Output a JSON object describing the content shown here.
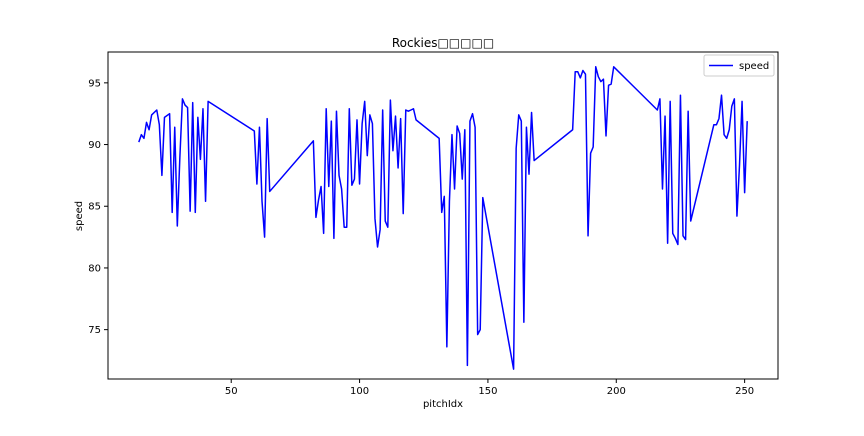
{
  "chart_data": {
    "type": "line",
    "title": "Rockies□□□□□",
    "xlabel": "pitchIdx",
    "ylabel": "speed",
    "xlim": [
      2,
      263
    ],
    "ylim": [
      71,
      97.5
    ],
    "xticks": [
      50,
      100,
      150,
      200,
      250
    ],
    "yticks": [
      75,
      80,
      85,
      90,
      95
    ],
    "grid": false,
    "legend_position": "top-right",
    "series": [
      {
        "name": "speed",
        "color": "#0000ff",
        "points": [
          [
            14,
            90.2
          ],
          [
            15,
            90.8
          ],
          [
            16,
            90.5
          ],
          [
            17,
            91.8
          ],
          [
            18,
            91.2
          ],
          [
            19,
            92.4
          ],
          [
            21,
            92.8
          ],
          [
            22,
            91.6
          ],
          [
            23,
            87.5
          ],
          [
            24,
            92.2
          ],
          [
            26,
            92.5
          ],
          [
            27,
            84.5
          ],
          [
            28,
            91.4
          ],
          [
            29,
            83.4
          ],
          [
            30,
            89.0
          ],
          [
            31,
            93.7
          ],
          [
            32,
            93.2
          ],
          [
            33,
            93.0
          ],
          [
            34,
            84.6
          ],
          [
            35,
            93.4
          ],
          [
            36,
            84.5
          ],
          [
            37,
            92.2
          ],
          [
            38,
            88.8
          ],
          [
            39,
            92.9
          ],
          [
            40,
            85.4
          ],
          [
            41,
            93.5
          ],
          [
            59,
            91.1
          ],
          [
            60,
            86.8
          ],
          [
            61,
            91.4
          ],
          [
            62,
            85.4
          ],
          [
            63,
            82.5
          ],
          [
            64,
            92.1
          ],
          [
            65,
            86.2
          ],
          [
            82,
            90.3
          ],
          [
            83,
            84.1
          ],
          [
            84,
            85.5
          ],
          [
            85,
            86.6
          ],
          [
            86,
            82.8
          ],
          [
            87,
            92.9
          ],
          [
            88,
            86.6
          ],
          [
            89,
            91.9
          ],
          [
            90,
            82.4
          ],
          [
            91,
            92.7
          ],
          [
            92,
            87.5
          ],
          [
            93,
            86.4
          ],
          [
            94,
            83.3
          ],
          [
            95,
            83.3
          ],
          [
            96,
            92.9
          ],
          [
            97,
            86.7
          ],
          [
            98,
            87.2
          ],
          [
            99,
            92.0
          ],
          [
            100,
            86.8
          ],
          [
            101,
            91.7
          ],
          [
            102,
            93.5
          ],
          [
            103,
            89.1
          ],
          [
            104,
            92.4
          ],
          [
            105,
            91.7
          ],
          [
            106,
            84.0
          ],
          [
            107,
            81.7
          ],
          [
            108,
            83.1
          ],
          [
            109,
            92.8
          ],
          [
            110,
            83.8
          ],
          [
            111,
            83.3
          ],
          [
            112,
            93.6
          ],
          [
            113,
            89.5
          ],
          [
            114,
            92.3
          ],
          [
            115,
            88.1
          ],
          [
            116,
            92.1
          ],
          [
            117,
            84.4
          ],
          [
            118,
            92.8
          ],
          [
            119,
            92.7
          ],
          [
            120,
            92.8
          ],
          [
            121,
            92.9
          ],
          [
            122,
            92.0
          ],
          [
            131,
            90.5
          ],
          [
            132,
            84.5
          ],
          [
            133,
            85.8
          ],
          [
            134,
            73.6
          ],
          [
            135,
            85.4
          ],
          [
            136,
            90.8
          ],
          [
            137,
            86.4
          ],
          [
            138,
            91.5
          ],
          [
            139,
            90.9
          ],
          [
            140,
            87.2
          ],
          [
            141,
            91.2
          ],
          [
            142,
            72.1
          ],
          [
            143,
            91.9
          ],
          [
            144,
            92.5
          ],
          [
            145,
            91.4
          ],
          [
            146,
            74.6
          ],
          [
            147,
            75.0
          ],
          [
            148,
            85.7
          ],
          [
            160,
            71.8
          ],
          [
            161,
            89.7
          ],
          [
            162,
            92.4
          ],
          [
            163,
            91.9
          ],
          [
            164,
            75.6
          ],
          [
            165,
            91.4
          ],
          [
            166,
            87.6
          ],
          [
            167,
            92.6
          ],
          [
            168,
            88.7
          ],
          [
            183,
            91.2
          ],
          [
            184,
            95.9
          ],
          [
            185,
            95.9
          ],
          [
            186,
            95.4
          ],
          [
            187,
            96.0
          ],
          [
            188,
            95.7
          ],
          [
            189,
            82.6
          ],
          [
            190,
            89.3
          ],
          [
            191,
            89.8
          ],
          [
            192,
            96.3
          ],
          [
            193,
            95.5
          ],
          [
            194,
            95.1
          ],
          [
            195,
            95.3
          ],
          [
            196,
            90.7
          ],
          [
            197,
            94.8
          ],
          [
            198,
            94.9
          ],
          [
            199,
            96.3
          ],
          [
            216,
            92.8
          ],
          [
            217,
            93.7
          ],
          [
            218,
            86.4
          ],
          [
            219,
            92.3
          ],
          [
            220,
            82.0
          ],
          [
            221,
            93.5
          ],
          [
            222,
            82.8
          ],
          [
            223,
            82.4
          ],
          [
            224,
            81.9
          ],
          [
            225,
            94.0
          ],
          [
            226,
            82.6
          ],
          [
            227,
            82.3
          ],
          [
            228,
            92.7
          ],
          [
            229,
            83.8
          ],
          [
            238,
            91.6
          ],
          [
            239,
            91.6
          ],
          [
            240,
            92.1
          ],
          [
            241,
            94.0
          ],
          [
            242,
            90.8
          ],
          [
            243,
            90.5
          ],
          [
            244,
            91.2
          ],
          [
            245,
            93.1
          ],
          [
            246,
            93.7
          ],
          [
            247,
            84.2
          ],
          [
            248,
            88.3
          ],
          [
            249,
            93.5
          ],
          [
            250,
            86.1
          ],
          [
            251,
            91.9
          ]
        ]
      }
    ]
  }
}
